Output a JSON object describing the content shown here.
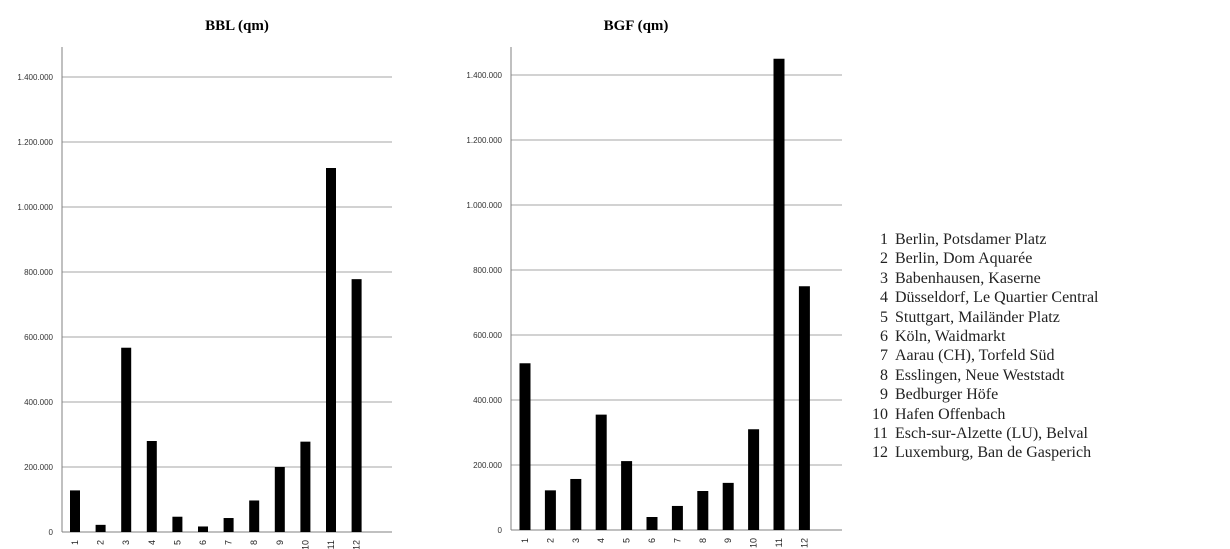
{
  "chart_data": [
    {
      "type": "bar",
      "title": "BBL (qm)",
      "xlabel": "",
      "ylabel": "",
      "categories": [
        "1",
        "2",
        "3",
        "4",
        "5",
        "6",
        "7",
        "8",
        "9",
        "10",
        "11",
        "12"
      ],
      "values": [
        128000,
        22000,
        567000,
        280000,
        47000,
        17000,
        43000,
        97000,
        200000,
        278000,
        1120000,
        778000
      ],
      "ylim": [
        0,
        1400000
      ],
      "yticks": [
        0,
        200000,
        400000,
        600000,
        800000,
        1000000,
        1200000,
        1400000
      ],
      "ytick_labels": [
        "0",
        "200.000",
        "400.000",
        "600.000",
        "800.000",
        "1.000.000",
        "1.200.000",
        "1.400.000"
      ],
      "grid": true,
      "bar_color": "#000000"
    },
    {
      "type": "bar",
      "title": "BGF (qm)",
      "xlabel": "",
      "ylabel": "",
      "categories": [
        "1",
        "2",
        "3",
        "4",
        "5",
        "6",
        "7",
        "8",
        "9",
        "10",
        "11",
        "12"
      ],
      "values": [
        513000,
        122000,
        157000,
        355000,
        212000,
        40000,
        74000,
        120000,
        145000,
        310000,
        1450000,
        750000
      ],
      "ylim": [
        0,
        1400000
      ],
      "yticks": [
        0,
        200000,
        400000,
        600000,
        800000,
        1000000,
        1200000,
        1400000
      ],
      "ytick_labels": [
        "0",
        "200.000",
        "400.000",
        "600.000",
        "800.000",
        "1.000.000",
        "1.200.000",
        "1.400.000"
      ],
      "grid": true,
      "bar_color": "#000000"
    }
  ],
  "legend": {
    "items": [
      {
        "num": "1",
        "label": "Berlin, Potsdamer Platz"
      },
      {
        "num": "2",
        "label": "Berlin, Dom Aquarée"
      },
      {
        "num": "3",
        "label": "Babenhausen, Kaserne"
      },
      {
        "num": "4",
        "label": "Düsseldorf, Le Quartier Central"
      },
      {
        "num": "5",
        "label": "Stuttgart, Mailänder Platz"
      },
      {
        "num": "6",
        "label": "Köln, Waidmarkt"
      },
      {
        "num": "7",
        "label": "Aarau (CH), Torfeld Süd"
      },
      {
        "num": "8",
        "label": "Esslingen, Neue Weststadt"
      },
      {
        "num": "9",
        "label": "Bedburger Höfe"
      },
      {
        "num": "10",
        "label": "Hafen Offenbach"
      },
      {
        "num": "11",
        "label": "Esch-sur-Alzette (LU), Belval"
      },
      {
        "num": "12",
        "label": "Luxemburg, Ban de Gasperich"
      }
    ]
  }
}
